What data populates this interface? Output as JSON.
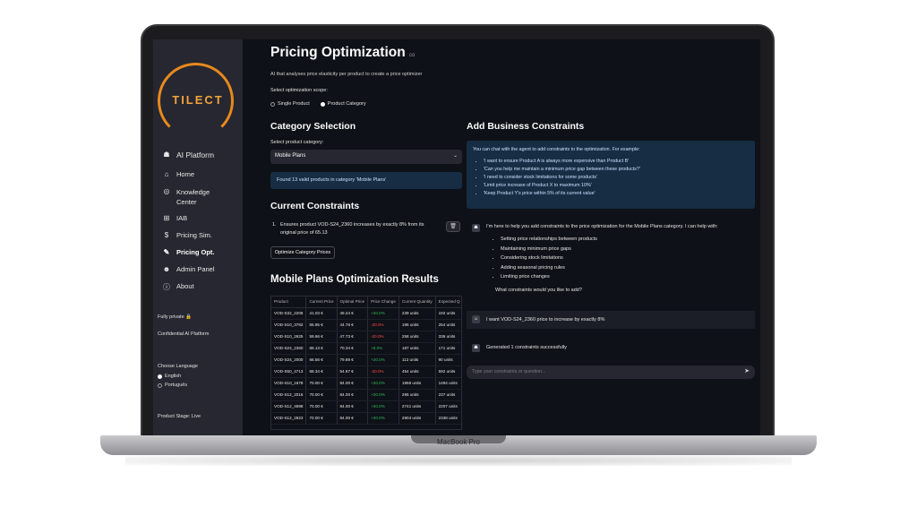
{
  "device_label": "MacBook Pro",
  "sidebar": {
    "logo": "TILECT",
    "items": [
      {
        "icon": "robot-icon",
        "glyph": "☗",
        "label": "AI Platform"
      },
      {
        "icon": "home-icon",
        "glyph": "⌂",
        "label": "Home"
      },
      {
        "icon": "brain-icon",
        "glyph": "◎",
        "label": "Knowledge Center"
      },
      {
        "icon": "binoculars-icon",
        "glyph": "⊞",
        "label": "IAB"
      },
      {
        "icon": "dollar-icon",
        "glyph": "$",
        "label": "Pricing Sim."
      },
      {
        "icon": "wand-icon",
        "glyph": "✎",
        "label": "Pricing Opt."
      },
      {
        "icon": "admin-icon",
        "glyph": "☻",
        "label": "Admin Panel"
      },
      {
        "icon": "info-icon",
        "glyph": "ⓘ",
        "label": "About"
      }
    ],
    "privacy_note": "Fully private 🔒",
    "platform_note": "Confidential AI Platform",
    "language_label": "Choose Language",
    "languages": [
      "English",
      "Português"
    ],
    "stage_note": "Product Stage: Live"
  },
  "main": {
    "title": "Pricing Optimization",
    "title_suffix": "co",
    "subtitle": "AI that analyses price elasticity per product to create a price optimizer",
    "scope_label": "Select optimization scope:",
    "scope_options": [
      "Single Product",
      "Product Category"
    ],
    "category_heading": "Category Selection",
    "category_label": "Select product category:",
    "category_value": "Mobile Plans",
    "found_message": "Found 13 valid products in category 'Mobile Plans'",
    "constraints_heading": "Current Constraints",
    "constraint_num": "1.",
    "constraint_text": "Ensures product VOD-S24_2360 increases by exactly 8% from its original price of 65.13",
    "optimize_button": "Optimize Category Prices",
    "results_heading": "Mobile Plans Optimization Results",
    "table": {
      "headers": [
        "Product",
        "Current Price",
        "Optimal Price",
        "Price Change",
        "Current Quantity",
        "Expected Q"
      ],
      "rows": [
        [
          "VOD-S32_2206",
          "41.03 €",
          "49.24 €",
          "+20.0%",
          "239 units",
          "192 units"
        ],
        [
          "VOD-S10_3782",
          "55.95 €",
          "44.76 €",
          "-20.0%",
          "195 units",
          "254 units"
        ],
        [
          "VOD-S10_2625",
          "59.66 €",
          "47.73 €",
          "-20.0%",
          "258 units",
          "336 units"
        ],
        [
          "VOD-S24_2360",
          "65.13 €",
          "70.34 €",
          "+8.0%",
          "187 units",
          "171 units"
        ],
        [
          "VOD-S24_2000",
          "66.56 €",
          "79.88 €",
          "+20.0%",
          "112 units",
          "90 units"
        ],
        [
          "VOD-S50_4713",
          "68.34 €",
          "54.67 €",
          "-20.0%",
          "454 units",
          "592 units"
        ],
        [
          "VOD-S10_1678",
          "70.00 €",
          "84.00 €",
          "+20.0%",
          "1856 units",
          "1494 units"
        ],
        [
          "VOD-S12_2016",
          "70.00 €",
          "84.00 €",
          "+20.0%",
          "295 units",
          "237 units"
        ],
        [
          "VOD-S12_4698",
          "70.00 €",
          "84.00 €",
          "+20.0%",
          "2741 units",
          "2207 units"
        ],
        [
          "VOD-S12_2823",
          "70.00 €",
          "84.00 €",
          "+20.0%",
          "2904 units",
          "2338 units"
        ]
      ]
    }
  },
  "right": {
    "heading": "Add Business Constraints",
    "info_intro": "You can chat with the agent to add constraints to the optimization. For example:",
    "examples": [
      "'I want to ensure Product A is always more expensive than Product B'",
      "'Can you help me maintain a minimum price gap between these products?'",
      "'I need to consider stock limitations for some products'",
      "'Limit price increase of Product X to maximum 10%'",
      "'Keep Product Y's price within 5% of its current value'"
    ],
    "assistant_intro": "I'm here to help you add constraints to the price optimization for the Mobile Plans category. I can help with:",
    "capabilities": [
      "Setting price relationships between products",
      "Maintaining minimum price gaps",
      "Considering stock limitations",
      "Adding seasonal pricing rules",
      "Limiting price changes"
    ],
    "assistant_question": "What constraints would you like to add?",
    "user_message": "I want VOD-S24_2360 price to increase by exactly 8%",
    "assistant_result": "Generated 1 constraints successfully",
    "input_placeholder": "Type your constraints or question..."
  },
  "colors": {
    "app_bg": "#0e1117",
    "sidebar_bg": "#262730",
    "accent_orange": "#e8891d",
    "info_bg": "#172d43",
    "positive": "#2ebd59",
    "negative": "#ff4b4b"
  }
}
